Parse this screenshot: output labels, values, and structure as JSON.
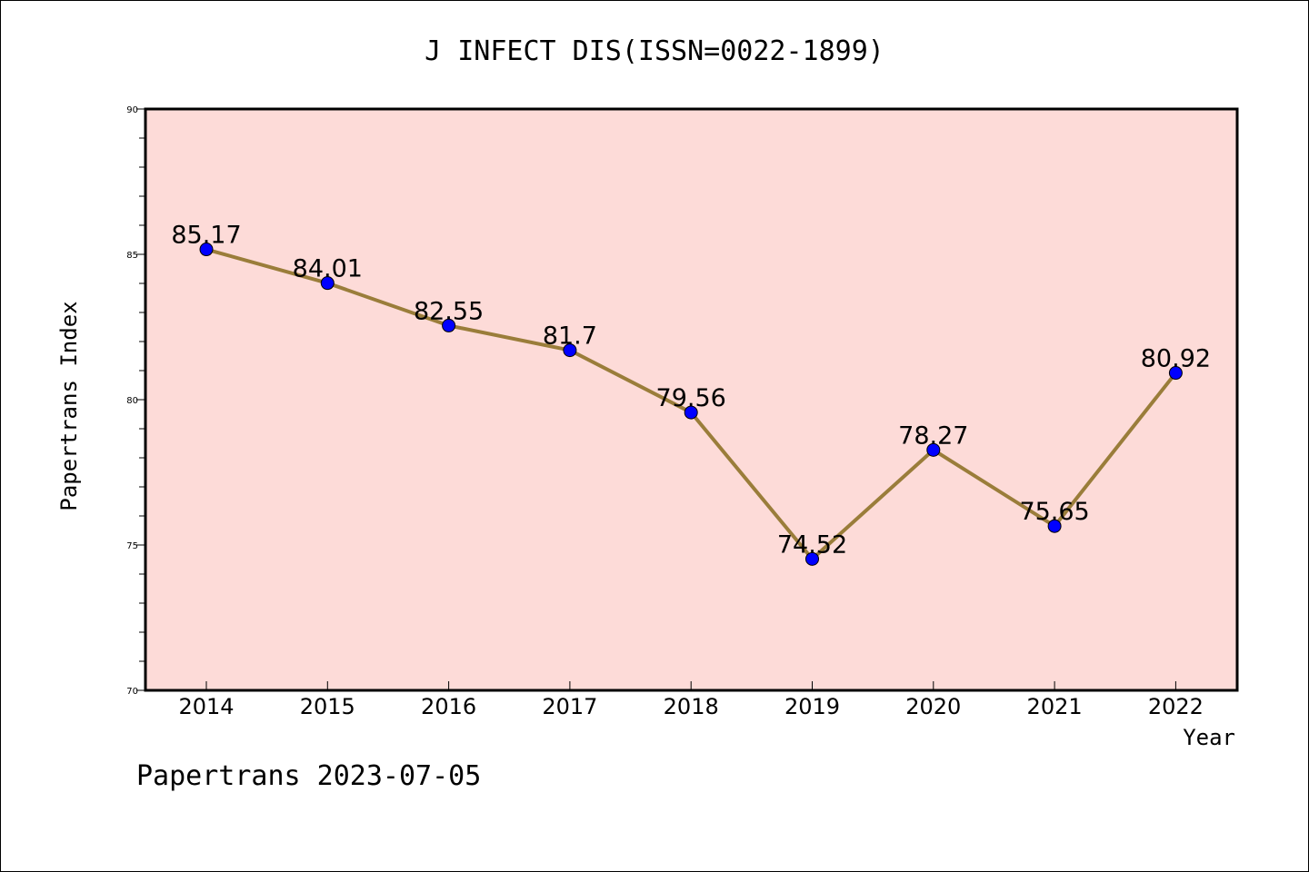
{
  "chart_data": {
    "type": "line",
    "title": "J INFECT DIS(ISSN=0022-1899)",
    "xlabel": "Year",
    "ylabel": "Papertrans Index",
    "footer": "Papertrans 2023-07-05",
    "categories": [
      "2014",
      "2015",
      "2016",
      "2017",
      "2018",
      "2019",
      "2020",
      "2021",
      "2022"
    ],
    "values": [
      85.17,
      84.01,
      82.55,
      81.7,
      79.56,
      74.52,
      78.27,
      75.65,
      80.92
    ],
    "point_labels": [
      "85.17",
      "84.01",
      "82.55",
      "81.7",
      "79.56",
      "74.52",
      "78.27",
      "75.65",
      "80.92"
    ],
    "ylim": [
      70,
      90
    ],
    "yticks": [
      "70",
      "75",
      "80",
      "85",
      "90"
    ],
    "grid": false,
    "colors": {
      "plot_background": "#fddbd8",
      "line": "#9a7d3a",
      "marker": "#0000ff"
    }
  }
}
